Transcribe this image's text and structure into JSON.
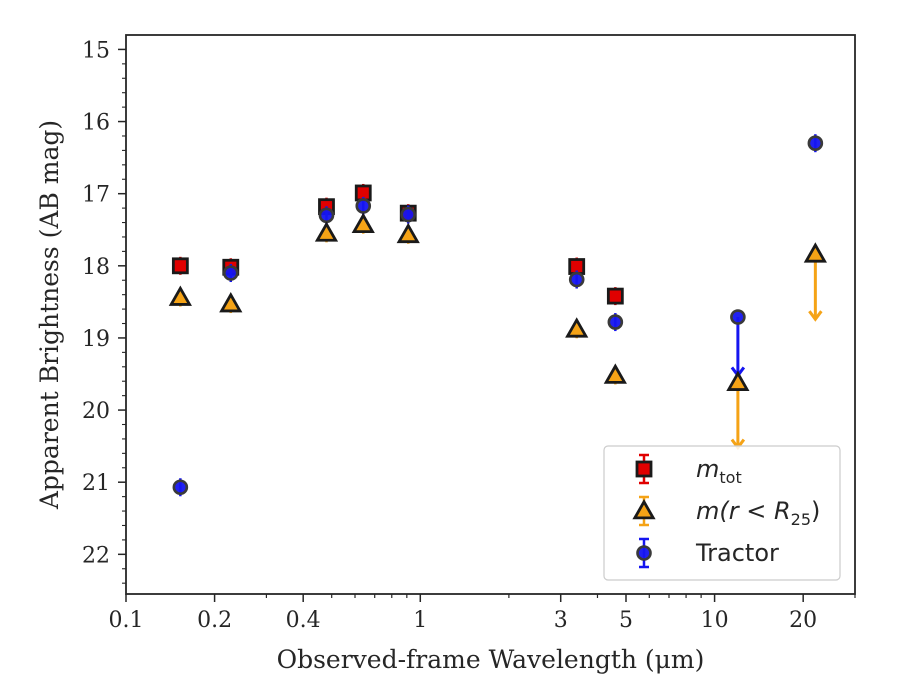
{
  "chart_data": {
    "type": "scatter",
    "xlabel": "Observed-frame Wavelength (μm)",
    "ylabel": "Apparent Brightness (AB mag)",
    "x_scale": "log",
    "xlim": [
      0.1,
      30
    ],
    "ylim": [
      22.55,
      14.8
    ],
    "y_inverted": true,
    "x_ticks": [
      {
        "value": 0.1,
        "label": "0.1"
      },
      {
        "value": 0.2,
        "label": "0.2"
      },
      {
        "value": 0.4,
        "label": "0.4"
      },
      {
        "value": 1,
        "label": "1"
      },
      {
        "value": 3,
        "label": "3"
      },
      {
        "value": 5,
        "label": "5"
      },
      {
        "value": 10,
        "label": "10"
      },
      {
        "value": 20,
        "label": "20"
      }
    ],
    "y_ticks": [
      {
        "value": 15,
        "label": "15"
      },
      {
        "value": 16,
        "label": "16"
      },
      {
        "value": 17,
        "label": "17"
      },
      {
        "value": 18,
        "label": "18"
      },
      {
        "value": 19,
        "label": "19"
      },
      {
        "value": 20,
        "label": "20"
      },
      {
        "value": 21,
        "label": "21"
      },
      {
        "value": 22,
        "label": "22"
      }
    ],
    "grid": false,
    "legend_position": "lower-right",
    "series": [
      {
        "name": "m_tot",
        "label_main": "m",
        "label_sub": "tot",
        "marker": "square",
        "color": "#e00000",
        "errcolor": "#e00000",
        "points": [
          {
            "x": 0.153,
            "y": 18.0
          },
          {
            "x": 0.227,
            "y": 18.02
          },
          {
            "x": 0.48,
            "y": 17.18
          },
          {
            "x": 0.64,
            "y": 16.99
          },
          {
            "x": 0.91,
            "y": 17.27
          },
          {
            "x": 3.4,
            "y": 18.01
          },
          {
            "x": 4.6,
            "y": 18.42
          }
        ]
      },
      {
        "name": "m(r < R25)",
        "label_main": "m(r < R",
        "label_sub": "25",
        "label_end": ")",
        "marker": "triangle",
        "color": "#f5a316",
        "errcolor": "#f5a316",
        "points": [
          {
            "x": 0.153,
            "y": 18.44
          },
          {
            "x": 0.227,
            "y": 18.53
          },
          {
            "x": 0.48,
            "y": 17.55
          },
          {
            "x": 0.64,
            "y": 17.43
          },
          {
            "x": 0.91,
            "y": 17.57
          },
          {
            "x": 3.4,
            "y": 18.88
          },
          {
            "x": 4.6,
            "y": 19.52
          },
          {
            "x": 12.0,
            "y": 19.62,
            "upper_limit_to": 20.52
          },
          {
            "x": 22.0,
            "y": 17.84,
            "upper_limit_to": 18.74
          }
        ]
      },
      {
        "name": "Tractor",
        "label_main": "Tractor",
        "marker": "circle",
        "color": "#1515f0",
        "errcolor": "#1515f0",
        "points": [
          {
            "x": 0.153,
            "y": 21.07
          },
          {
            "x": 0.227,
            "y": 18.1
          },
          {
            "x": 0.48,
            "y": 17.3
          },
          {
            "x": 0.64,
            "y": 17.17
          },
          {
            "x": 0.91,
            "y": 17.29
          },
          {
            "x": 3.4,
            "y": 18.19
          },
          {
            "x": 4.6,
            "y": 18.78
          },
          {
            "x": 12.0,
            "y": 18.71,
            "upper_limit_to": 19.52
          },
          {
            "x": 22.0,
            "y": 16.3
          }
        ]
      }
    ]
  }
}
